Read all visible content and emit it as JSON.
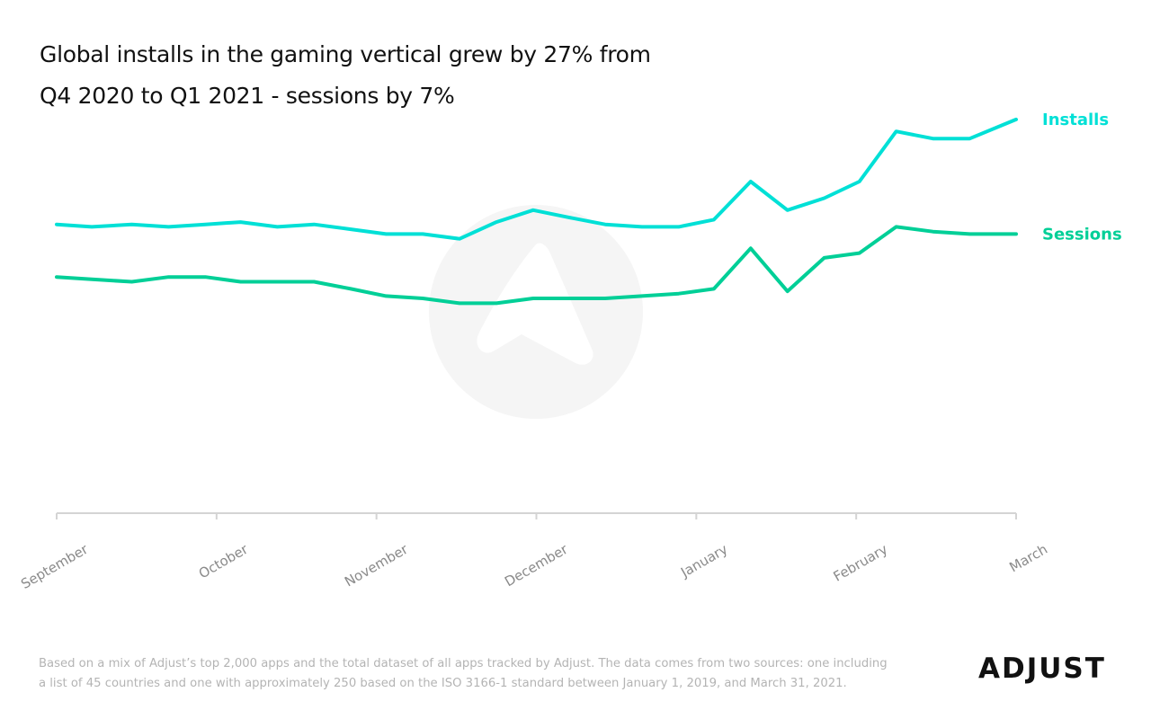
{
  "title": {
    "line1": "Global installs in the gaming vertical grew by 27% from",
    "line2": "Q4 2020 to Q1 2021 - sessions by 7%"
  },
  "footnote": {
    "line1": "Based on a mix of Adjust’s top 2,000 apps and the total dataset of all apps tracked by Adjust. The data comes from two sources: one including",
    "line2": "a list of 45 countries and one with approximately 250 based on the ISO 3166-1 standard between January 1, 2019, and March 31, 2021."
  },
  "logo": "ADJUST",
  "chart_data": {
    "type": "line",
    "title": "Global installs in the gaming vertical grew by 27% from Q4 2020 to Q1 2021 - sessions by 7%",
    "xlabel": "",
    "ylabel": "",
    "grid": false,
    "legend": "direct labels at right end of lines",
    "categories": [
      "September",
      "October",
      "November",
      "December",
      "January",
      "February",
      "March"
    ],
    "x": [
      0,
      0.22,
      0.47,
      0.7,
      0.93,
      1.15,
      1.38,
      1.61,
      1.84,
      2.06,
      2.29,
      2.52,
      2.75,
      2.98,
      3.2,
      3.43,
      3.66,
      3.89,
      4.11,
      4.34,
      4.57,
      4.8,
      5.02,
      5.25,
      5.48,
      5.71,
      6.0
    ],
    "series": [
      {
        "name": "Installs",
        "color": "#00e0d6",
        "values": [
          60.5,
          60.0,
          60.5,
          60.0,
          60.5,
          61.0,
          60.0,
          60.5,
          59.5,
          58.5,
          58.5,
          57.5,
          61.0,
          63.5,
          62.0,
          60.5,
          60.0,
          60.0,
          61.5,
          69.5,
          63.5,
          66.0,
          69.5,
          80.0,
          78.5,
          78.5,
          82.5
        ]
      },
      {
        "name": "Sessions",
        "color": "#00cf97",
        "values": [
          49.5,
          49.0,
          48.5,
          49.5,
          49.5,
          48.5,
          48.5,
          48.5,
          47.0,
          45.5,
          45.0,
          44.0,
          44.0,
          45.0,
          45.0,
          45.0,
          45.5,
          46.0,
          47.0,
          55.5,
          46.5,
          53.5,
          54.5,
          60.0,
          59.0,
          58.5,
          58.5
        ]
      }
    ],
    "xlim": [
      0,
      6
    ],
    "ylim": [
      0,
      100
    ]
  },
  "colors": {
    "axis": "#d4d4d4",
    "tick_label": "#8a8a8a",
    "installs": "#00e0d6",
    "sessions": "#00cf97",
    "watermark": "#f5f5f5"
  }
}
